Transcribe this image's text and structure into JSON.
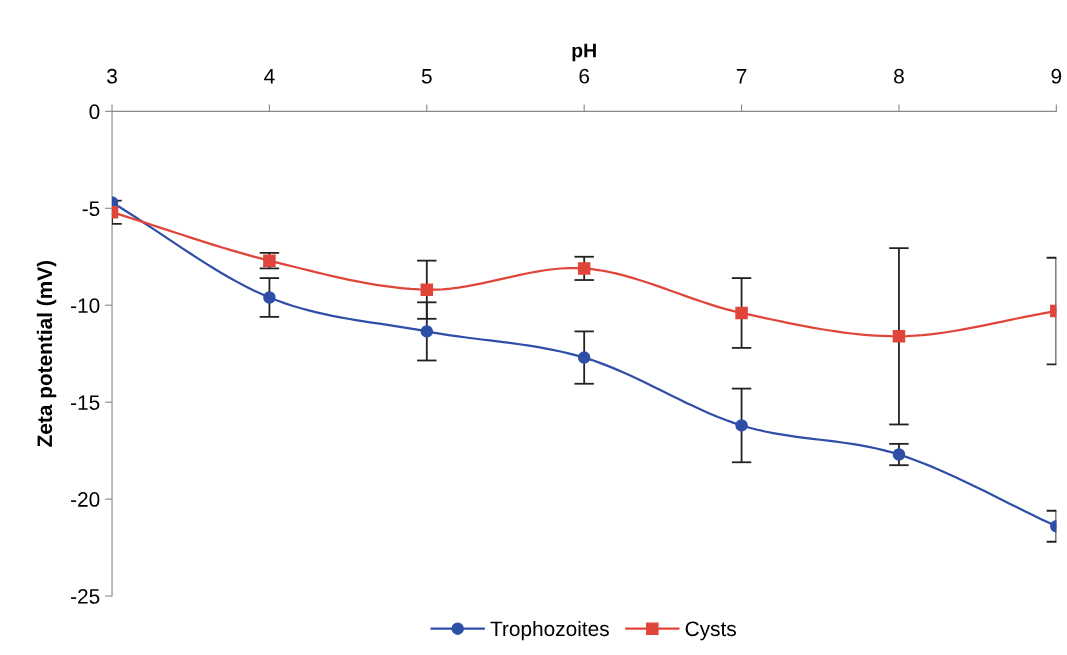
{
  "chart_data": {
    "type": "line",
    "xlabel": "pH",
    "ylabel": "Zeta potential (mV)",
    "x": [
      3,
      4,
      5,
      6,
      7,
      8,
      9
    ],
    "xlim": [
      3,
      9
    ],
    "xticks": [
      3,
      4,
      5,
      6,
      7,
      8,
      9
    ],
    "ylim": [
      -25,
      0
    ],
    "yticks": [
      -25,
      -20,
      -15,
      -10,
      -5,
      0
    ],
    "grid": false,
    "legend": "bottom",
    "line_style": "solid",
    "series": [
      {
        "name": "Trophozoites",
        "color": "#2e4fa8",
        "marker": "circle",
        "values": [
          -4.7,
          -9.6,
          -11.35,
          -12.7,
          -16.2,
          -17.7,
          -21.4
        ],
        "errors": [
          null,
          1.0,
          1.5,
          1.35,
          1.9,
          0.55,
          0.8
        ]
      },
      {
        "name": "Cysts",
        "color": "#e0453a",
        "marker": "square",
        "values": [
          -5.2,
          -7.7,
          -9.2,
          -8.1,
          -10.4,
          -11.6,
          -10.3
        ],
        "errors": [
          0.6,
          0.4,
          1.5,
          0.6,
          1.8,
          4.55,
          2.75
        ]
      }
    ]
  }
}
